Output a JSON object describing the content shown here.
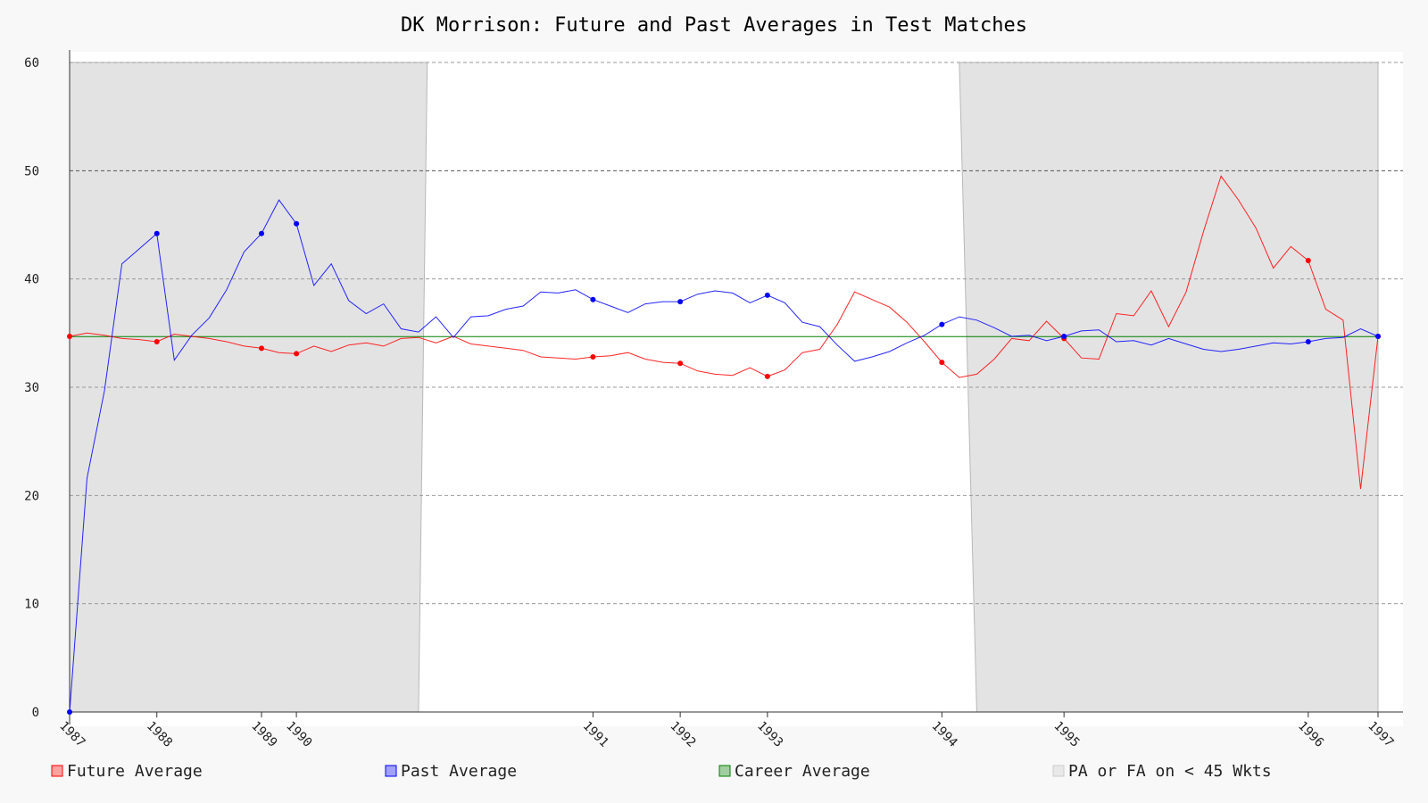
{
  "chart_data": {
    "type": "line",
    "title": "DK Morrison: Future and Past Averages in Test Matches",
    "xlabel": "",
    "ylabel": "",
    "ylim": [
      0,
      60
    ],
    "y_ticks": [
      0,
      10,
      20,
      30,
      40,
      50,
      60
    ],
    "grid": true,
    "legend_position": "bottom",
    "x_tick_labels": [
      {
        "label": "1987",
        "index": 0
      },
      {
        "label": "1988",
        "index": 5
      },
      {
        "label": "1989",
        "index": 11
      },
      {
        "label": "1990",
        "index": 13
      },
      {
        "label": "1991",
        "index": 30
      },
      {
        "label": "1992",
        "index": 35
      },
      {
        "label": "1993",
        "index": 40
      },
      {
        "label": "1994",
        "index": 50
      },
      {
        "label": "1995",
        "index": 57
      },
      {
        "label": "1996",
        "index": 71
      },
      {
        "label": "1997",
        "index": 75
      }
    ],
    "shaded_regions": [
      {
        "name": "PA or FA on < 45 Wkts",
        "from": 0,
        "to": 20.5,
        "to_bottom": 20
      },
      {
        "name": "PA or FA on < 45 Wkts",
        "from": 51,
        "to": 75,
        "from_bottom": 52
      }
    ],
    "series": [
      {
        "name": "Future Average",
        "color": "#ff0000",
        "values": [
          34.7,
          35.0,
          34.8,
          34.5,
          34.4,
          34.2,
          34.9,
          34.7,
          34.5,
          34.2,
          33.8,
          33.6,
          33.2,
          33.1,
          33.8,
          33.3,
          33.9,
          34.1,
          33.8,
          34.5,
          34.6,
          34.1,
          34.7,
          34.0,
          33.8,
          33.6,
          33.4,
          32.8,
          32.7,
          32.6,
          32.8,
          32.9,
          33.2,
          32.6,
          32.3,
          32.2,
          31.5,
          31.2,
          31.1,
          31.8,
          31.0,
          31.6,
          33.2,
          33.5,
          35.8,
          38.8,
          38.1,
          37.4,
          36.0,
          34.2,
          32.3,
          30.9,
          31.2,
          32.6,
          34.5,
          34.3,
          36.1,
          34.5,
          32.7,
          32.6,
          36.8,
          36.6,
          38.9,
          35.6,
          38.8,
          44.4,
          49.5,
          47.3,
          44.7,
          41.0,
          43.0,
          41.7,
          37.2,
          36.2,
          20.6,
          34.7
        ],
        "markers": [
          0,
          5,
          11,
          13,
          30,
          35,
          40,
          50,
          57,
          71,
          75
        ]
      },
      {
        "name": "Past Average",
        "color": "#0000ff",
        "values": [
          0.0,
          21.6,
          29.7,
          41.4,
          42.8,
          44.2,
          32.5,
          34.8,
          36.4,
          39.0,
          42.5,
          44.2,
          47.3,
          45.1,
          39.4,
          41.4,
          38.0,
          36.8,
          37.7,
          35.4,
          35.1,
          36.5,
          34.6,
          36.5,
          36.6,
          37.2,
          37.5,
          38.8,
          38.7,
          39.0,
          38.1,
          37.5,
          36.9,
          37.7,
          37.9,
          37.9,
          38.6,
          38.9,
          38.7,
          37.8,
          38.5,
          37.8,
          36.0,
          35.6,
          33.9,
          32.4,
          32.8,
          33.3,
          34.1,
          34.8,
          35.8,
          36.5,
          36.2,
          35.5,
          34.7,
          34.8,
          34.3,
          34.7,
          35.2,
          35.3,
          34.2,
          34.3,
          33.9,
          34.5,
          34.0,
          33.5,
          33.3,
          33.5,
          33.8,
          34.1,
          34.0,
          34.2,
          34.5,
          34.6,
          35.4,
          34.7
        ],
        "markers": [
          0,
          5,
          11,
          13,
          30,
          35,
          40,
          50,
          57,
          71,
          75
        ]
      },
      {
        "name": "Career Average",
        "color": "#008000",
        "value": 34.68
      }
    ],
    "legend": [
      {
        "label": "Future Average",
        "color": "#ff0000"
      },
      {
        "label": "Past Average",
        "color": "#0000ff"
      },
      {
        "label": "Career Average",
        "color": "#008000"
      },
      {
        "label": "PA or FA on < 45 Wkts",
        "color": "#cccccc"
      }
    ]
  }
}
